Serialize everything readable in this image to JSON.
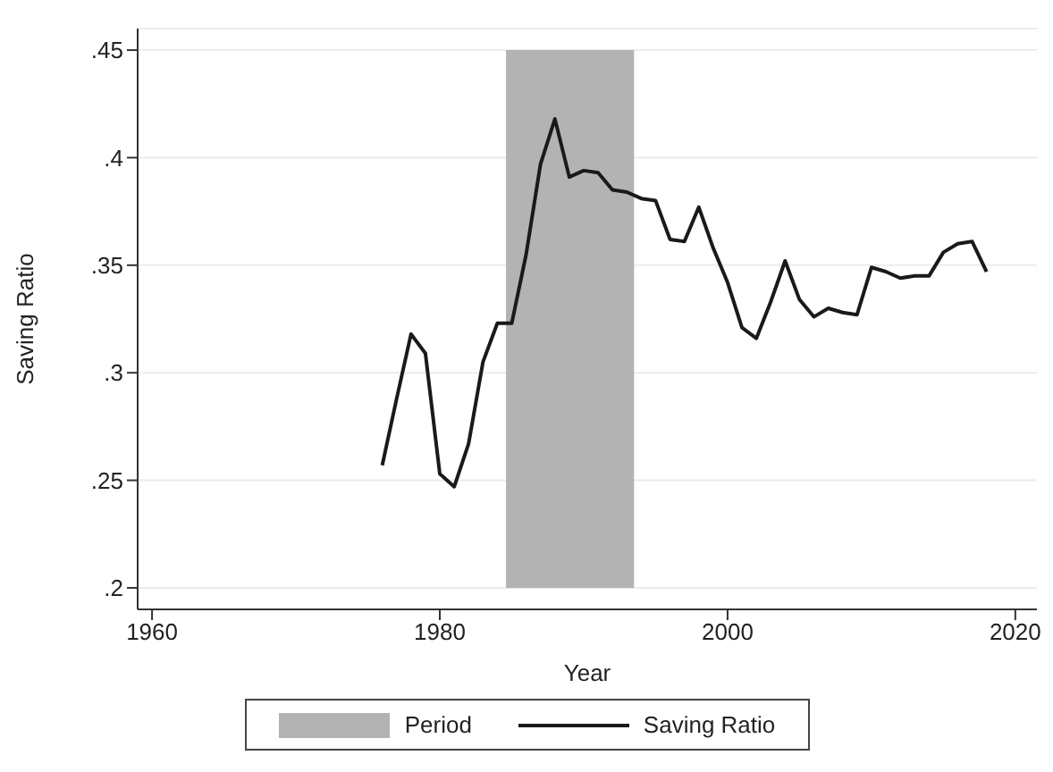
{
  "chart_data": {
    "type": "line",
    "xlabel": "Year",
    "ylabel": "Saving Ratio",
    "x": [
      1976,
      1977,
      1978,
      1979,
      1980,
      1981,
      1982,
      1983,
      1984,
      1985,
      1986,
      1987,
      1988,
      1989,
      1990,
      1991,
      1992,
      1993,
      1994,
      1995,
      1996,
      1997,
      1998,
      1999,
      2000,
      2001,
      2002,
      2003,
      2004,
      2005,
      2006,
      2007,
      2008,
      2009,
      2010,
      2011,
      2012,
      2013,
      2014,
      2015,
      2016,
      2017,
      2018
    ],
    "series": [
      {
        "name": "Saving Ratio",
        "color": "#1a1a1a",
        "values": [
          0.257,
          0.288,
          0.318,
          0.309,
          0.253,
          0.247,
          0.267,
          0.305,
          0.323,
          0.323,
          0.355,
          0.397,
          0.418,
          0.391,
          0.394,
          0.393,
          0.385,
          0.384,
          0.381,
          0.38,
          0.362,
          0.361,
          0.377,
          0.358,
          0.342,
          0.321,
          0.316,
          0.333,
          0.352,
          0.334,
          0.326,
          0.33,
          0.328,
          0.327,
          0.349,
          0.347,
          0.344,
          0.345,
          0.345,
          0.356,
          0.36,
          0.361,
          0.347
        ]
      }
    ],
    "bands": [
      {
        "axis": "x",
        "from": 1984.6,
        "to": 1993.5,
        "label": "Period",
        "color": "#b3b3b3"
      }
    ],
    "xlim": [
      1959,
      2021.5
    ],
    "xticks": [
      1960,
      1980,
      2000,
      2020
    ],
    "ylim": [
      0.19,
      0.46
    ],
    "yticks": [
      {
        "value": 0.2,
        "label": ".2"
      },
      {
        "value": 0.25,
        "label": ".25"
      },
      {
        "value": 0.3,
        "label": ".3"
      },
      {
        "value": 0.35,
        "label": ".35"
      },
      {
        "value": 0.4,
        "label": ".4"
      },
      {
        "value": 0.45,
        "label": ".45"
      }
    ],
    "grid": "y",
    "legend": "bottom",
    "marker": "none",
    "line_style": "solid"
  }
}
